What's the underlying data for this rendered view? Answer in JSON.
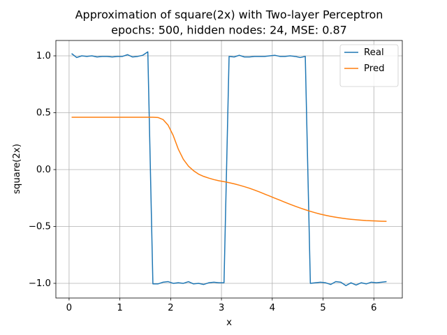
{
  "chart_data": {
    "type": "line",
    "title": "Approximation of square(2x) with Two-layer Perceptron",
    "subtitle": "epochs: 500, hidden nodes: 24, MSE: 0.87",
    "x_label": "x",
    "y_label": "square(2x)",
    "x": [
      0.05,
      0.15,
      0.25,
      0.35,
      0.45,
      0.55,
      0.65,
      0.75,
      0.85,
      0.95,
      1.05,
      1.15,
      1.25,
      1.35,
      1.45,
      1.55,
      1.65,
      1.75,
      1.85,
      1.95,
      2.05,
      2.15,
      2.25,
      2.35,
      2.45,
      2.55,
      2.65,
      2.75,
      2.85,
      2.95,
      3.05,
      3.15,
      3.25,
      3.35,
      3.45,
      3.55,
      3.65,
      3.75,
      3.85,
      3.95,
      4.05,
      4.15,
      4.25,
      4.35,
      4.45,
      4.55,
      4.65,
      4.75,
      4.85,
      4.95,
      5.05,
      5.15,
      5.25,
      5.35,
      5.45,
      5.55,
      5.65,
      5.75,
      5.85,
      5.95,
      6.05,
      6.15,
      6.25
    ],
    "series": [
      {
        "name": "Real",
        "color": "#1f77b4",
        "values": [
          1.02,
          0.985,
          1.0,
          0.995,
          1.0,
          0.99,
          0.995,
          0.995,
          0.99,
          0.995,
          0.995,
          1.01,
          0.99,
          0.995,
          1.005,
          1.035,
          -1.005,
          -1.005,
          -0.99,
          -0.985,
          -1.0,
          -0.995,
          -1.0,
          -0.985,
          -1.005,
          -1.0,
          -1.01,
          -0.995,
          -0.99,
          -0.995,
          -0.995,
          0.995,
          0.99,
          1.005,
          0.99,
          0.99,
          0.995,
          0.995,
          0.995,
          1.0,
          1.005,
          0.995,
          0.995,
          1.0,
          0.995,
          0.985,
          0.995,
          -1.0,
          -0.995,
          -0.99,
          -0.995,
          -1.01,
          -0.985,
          -0.99,
          -1.02,
          -0.995,
          -1.015,
          -0.995,
          -1.005,
          -0.99,
          -0.995,
          -0.99,
          -0.985
        ]
      },
      {
        "name": "Pred",
        "color": "#ff7f0e",
        "values": [
          0.46,
          0.46,
          0.46,
          0.46,
          0.46,
          0.46,
          0.46,
          0.46,
          0.46,
          0.46,
          0.46,
          0.46,
          0.46,
          0.46,
          0.46,
          0.46,
          0.46,
          0.458,
          0.44,
          0.39,
          0.3,
          0.18,
          0.09,
          0.03,
          -0.01,
          -0.04,
          -0.06,
          -0.075,
          -0.088,
          -0.098,
          -0.106,
          -0.115,
          -0.125,
          -0.137,
          -0.15,
          -0.164,
          -0.18,
          -0.197,
          -0.215,
          -0.233,
          -0.251,
          -0.269,
          -0.287,
          -0.305,
          -0.322,
          -0.338,
          -0.353,
          -0.367,
          -0.38,
          -0.392,
          -0.402,
          -0.411,
          -0.419,
          -0.426,
          -0.432,
          -0.437,
          -0.441,
          -0.445,
          -0.448,
          -0.45,
          -0.452,
          -0.454,
          -0.455
        ]
      }
    ],
    "xlim": [
      -0.26,
      6.56
    ],
    "xticks": [
      0,
      1,
      2,
      3,
      4,
      5,
      6
    ],
    "ylim": [
      -1.129,
      1.135
    ],
    "yticks": [
      {
        "value": -1,
        "label": "−1.0"
      },
      {
        "value": -0.5,
        "label": "−0.5"
      },
      {
        "value": 0,
        "label": "0.0"
      },
      {
        "value": 0.5,
        "label": "0.5"
      },
      {
        "value": 1,
        "label": "1.0"
      }
    ],
    "grid": true,
    "legend": "upper right"
  }
}
